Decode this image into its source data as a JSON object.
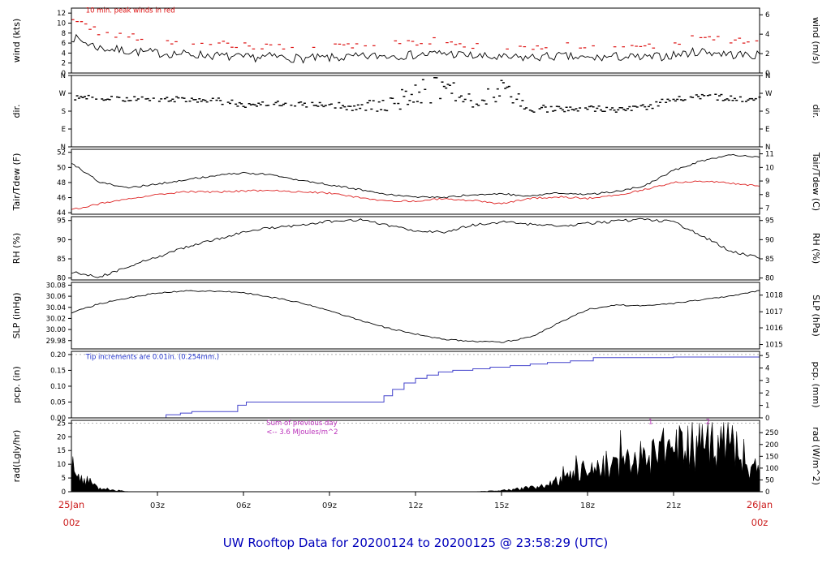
{
  "title": "UW Rooftop Data for 20200124  to  20200125 @ 23:58:29  (UTC)",
  "seed": 7,
  "colors": {
    "trace": "#000000",
    "peak_red": "#dd1111",
    "dew_red": "#dd2222",
    "precip_blue": "#4444cc",
    "annotation_blue": "#2233cc",
    "annotation_magenta": "#bb33bb",
    "axis_date_red": "#cc2020",
    "title_blue": "#0000bb",
    "tick_text": "#222222"
  },
  "x_axis": {
    "hours_span": 24,
    "tick_hours": [
      3,
      6,
      9,
      12,
      15,
      18,
      21
    ],
    "tick_labels": [
      "03z",
      "06z",
      "09z",
      "12z",
      "15z",
      "18z",
      "21z"
    ],
    "start_label_line1": "25Jan",
    "start_label_line2": "00z",
    "end_label_line1": "26Jan",
    "end_label_line2": "00z"
  },
  "chart_data": [
    {
      "id": "wind",
      "type": "line",
      "label_left": "wind (kts)",
      "label_right": "wind (m/s)",
      "ylim": [
        0,
        13
      ],
      "ticks_left": {
        "values": [
          0,
          2,
          4,
          6,
          8,
          10,
          12
        ],
        "labels": [
          "0",
          "2",
          "4",
          "6",
          "8",
          "10",
          "12"
        ]
      },
      "ticks_right": {
        "values": [
          0,
          3.889,
          7.778,
          11.667
        ],
        "labels": [
          "0",
          "2",
          "4",
          "6"
        ]
      },
      "annotations": [
        {
          "text": "10 min. peak winds in red",
          "x_hour": 0.5,
          "y_value": 12.1,
          "color": "#dd1111",
          "anchor": "start",
          "size": 8.5
        }
      ],
      "series": [
        {
          "name": "wind-average-kts",
          "style": "line",
          "color": "#000000",
          "noise": 0.9,
          "clamp": [
            0.3,
            12.4
          ],
          "values": [
            7.2,
            5.0,
            4.4,
            4.0,
            3.8,
            3.5,
            3.0,
            3.3,
            2.9,
            3.0,
            3.2,
            3.5,
            3.6,
            4.0,
            3.4,
            3.0,
            3.1,
            3.4,
            2.9,
            3.3,
            3.0,
            3.6,
            4.4,
            3.7,
            3.5
          ]
        },
        {
          "name": "wind-10min-peak-kts",
          "style": "dashes",
          "color": "#dd1111",
          "jitter": 0.7,
          "density": 0.62,
          "values": [
            10.8,
            8.2,
            7.4,
            6.4,
            6.0,
            5.8,
            5.4,
            5.6,
            5.0,
            5.0,
            5.6,
            6.0,
            6.2,
            6.6,
            5.6,
            5.0,
            5.4,
            5.6,
            5.0,
            5.4,
            5.2,
            6.0,
            7.6,
            6.6,
            6.0
          ]
        }
      ]
    },
    {
      "id": "dir",
      "type": "scatter",
      "label_left": "dir.",
      "label_right": "dir.",
      "ylim": [
        0,
        360
      ],
      "ticks_left": {
        "values": [
          0,
          90,
          180,
          270,
          360
        ],
        "labels": [
          "N",
          "E",
          "S",
          "W",
          "N"
        ]
      },
      "ticks_right": {
        "values": [
          0,
          90,
          180,
          270,
          360
        ],
        "labels": [
          "N",
          "E",
          "S",
          "W",
          "N"
        ]
      },
      "annotations": [],
      "series": [
        {
          "name": "wind-direction-deg",
          "style": "scatter",
          "color": "#000000",
          "values": [
            250,
            246,
            240,
            244,
            238,
            234,
            214,
            220,
            214,
            206,
            200,
            212,
            268,
            298,
            228,
            298,
            182,
            196,
            200,
            186,
            204,
            238,
            254,
            246,
            240
          ],
          "spread": [
            14,
            12,
            12,
            14,
            12,
            14,
            16,
            14,
            14,
            18,
            26,
            40,
            70,
            60,
            30,
            65,
            25,
            20,
            18,
            16,
            20,
            18,
            14,
            16,
            14
          ]
        }
      ]
    },
    {
      "id": "temperature",
      "type": "line",
      "label_left": "Tair/Tdew (F)",
      "label_right": "Tair/Tdew (C)",
      "ylim": [
        43.8,
        52.4
      ],
      "ticks_left": {
        "values": [
          44,
          46,
          48,
          50,
          52
        ],
        "labels": [
          "44",
          "46",
          "48",
          "50",
          "52"
        ]
      },
      "ticks_right": {
        "values": [
          44.6,
          46.4,
          48.2,
          50.0,
          51.8
        ],
        "labels": [
          "7",
          "8",
          "9",
          "10",
          "11"
        ]
      },
      "annotations": [],
      "series": [
        {
          "name": "tair-f",
          "style": "line",
          "color": "#000000",
          "noise": 0.12,
          "values": [
            50.6,
            48.0,
            47.3,
            47.8,
            48.4,
            48.9,
            49.3,
            49.0,
            48.3,
            47.7,
            47.1,
            46.4,
            46.1,
            46.0,
            46.4,
            46.5,
            46.2,
            46.6,
            46.4,
            46.8,
            47.6,
            49.6,
            50.9,
            51.7,
            51.4
          ]
        },
        {
          "name": "tdew-f",
          "style": "line",
          "color": "#dd2222",
          "noise": 0.12,
          "values": [
            44.4,
            45.2,
            45.9,
            46.4,
            46.8,
            46.7,
            46.9,
            46.9,
            46.8,
            46.6,
            46.0,
            45.6,
            45.5,
            45.9,
            45.6,
            45.2,
            45.9,
            46.1,
            45.9,
            46.3,
            47.1,
            48.0,
            48.2,
            47.9,
            47.5
          ]
        }
      ]
    },
    {
      "id": "rh",
      "type": "line",
      "label_left": "RH (%)",
      "label_right": "RH (%)",
      "ylim": [
        79.5,
        96
      ],
      "ticks_left": {
        "values": [
          80,
          85,
          90,
          95
        ],
        "labels": [
          "80",
          "85",
          "90",
          "95"
        ]
      },
      "ticks_right": {
        "values": [
          80,
          85,
          90,
          95
        ],
        "labels": [
          "80",
          "85",
          "90",
          "95"
        ]
      },
      "annotations": [],
      "series": [
        {
          "name": "relative-humidity-pct",
          "style": "line",
          "color": "#000000",
          "noise": 0.35,
          "clamp": [
            79.8,
            95.7
          ],
          "values": [
            81.5,
            80.3,
            83.0,
            85.5,
            88.0,
            90.0,
            92.0,
            93.2,
            93.6,
            94.8,
            95.2,
            93.8,
            92.3,
            92.0,
            93.8,
            94.6,
            94.0,
            93.6,
            94.2,
            94.8,
            95.3,
            94.6,
            91.0,
            87.0,
            85.3
          ]
        }
      ]
    },
    {
      "id": "slp",
      "type": "line",
      "label_left": "SLP (inHg)",
      "label_right": "SLP (hPa)",
      "ylim": [
        29.965,
        30.085
      ],
      "ticks_left": {
        "values": [
          29.98,
          30.0,
          30.02,
          30.04,
          30.06,
          30.08
        ],
        "labels": [
          "29.98",
          "30.00",
          "30.02",
          "30.04",
          "30.06",
          "30.08"
        ]
      },
      "ticks_right": {
        "values": [
          29.973,
          30.003,
          30.032,
          30.062
        ],
        "labels": [
          "1015",
          "1016",
          "1017",
          "1018"
        ]
      },
      "annotations": [],
      "series": [
        {
          "name": "sea-level-pressure-inhg",
          "style": "line",
          "color": "#000000",
          "noise": 0.0012,
          "values": [
            30.03,
            30.047,
            30.057,
            30.066,
            30.07,
            30.069,
            30.067,
            30.058,
            30.048,
            30.034,
            30.018,
            30.003,
            29.992,
            29.982,
            29.979,
            29.977,
            29.986,
            30.012,
            30.036,
            30.044,
            30.043,
            30.047,
            30.054,
            30.061,
            30.07
          ]
        }
      ]
    },
    {
      "id": "precip",
      "type": "step",
      "label_left": "pcp. (in)",
      "label_right": "pcp. (mm)",
      "ylim": [
        0,
        0.21
      ],
      "grid_dashed": [
        0.2
      ],
      "ticks_left": {
        "values": [
          0.0,
          0.05,
          0.1,
          0.15,
          0.2
        ],
        "labels": [
          "0.00",
          "0.05",
          "0.10",
          "0.15",
          "0.20"
        ]
      },
      "ticks_right": {
        "values": [
          0,
          0.0394,
          0.0787,
          0.1181,
          0.1575,
          0.1969
        ],
        "labels": [
          "0",
          "1",
          "2",
          "3",
          "4",
          "5"
        ]
      },
      "annotations": [
        {
          "text": "Tip increments are 0.01in. (0.254mm.)",
          "x_hour": 0.5,
          "y_value": 0.186,
          "color": "#2233cc",
          "anchor": "start",
          "size": 8.5
        }
      ],
      "series": [
        {
          "name": "precip-accum-in",
          "style": "step",
          "color": "#4444cc",
          "points": [
            [
              0,
              0
            ],
            [
              3.0,
              0
            ],
            [
              3.3,
              0.01
            ],
            [
              3.8,
              0.015
            ],
            [
              4.2,
              0.02
            ],
            [
              5.6,
              0.02
            ],
            [
              5.8,
              0.04
            ],
            [
              6.1,
              0.05
            ],
            [
              10.6,
              0.05
            ],
            [
              10.9,
              0.07
            ],
            [
              11.2,
              0.09
            ],
            [
              11.6,
              0.11
            ],
            [
              12.0,
              0.125
            ],
            [
              12.4,
              0.135
            ],
            [
              12.8,
              0.145
            ],
            [
              13.3,
              0.15
            ],
            [
              14.0,
              0.155
            ],
            [
              14.6,
              0.16
            ],
            [
              15.3,
              0.165
            ],
            [
              16.0,
              0.17
            ],
            [
              16.6,
              0.175
            ],
            [
              17.4,
              0.18
            ],
            [
              18.2,
              0.19
            ],
            [
              20.5,
              0.19
            ],
            [
              21.0,
              0.192
            ],
            [
              24,
              0.195
            ]
          ]
        }
      ]
    },
    {
      "id": "radiation",
      "type": "area",
      "label_left": "rad(Lgly/hr)",
      "label_right": "rad (W/m^2)",
      "ylim": [
        0,
        26
      ],
      "grid_dashed": [
        25
      ],
      "ticks_left": {
        "values": [
          0,
          5,
          10,
          15,
          20,
          25
        ],
        "labels": [
          "0",
          "5",
          "10",
          "15",
          "20",
          "25"
        ]
      },
      "ticks_right": {
        "values": [
          0,
          4.3,
          8.6,
          12.9,
          17.2,
          21.5
        ],
        "labels": [
          "0",
          "50",
          "100",
          "150",
          "200",
          "250"
        ]
      },
      "annotations": [
        {
          "text": "Sum of previous day",
          "x_hour": 6.8,
          "y_value": 24.2,
          "color": "#bb33bb",
          "anchor": "start",
          "size": 8.5
        },
        {
          "text": "<-- 3.6 MJoules/m^2",
          "x_hour": 6.8,
          "y_value": 21.0,
          "color": "#bb33bb",
          "anchor": "start",
          "size": 8.5
        },
        {
          "text": "1",
          "x_hour": 20.2,
          "y_value": 24.6,
          "color": "#bb33bb",
          "anchor": "middle",
          "size": 8.5
        },
        {
          "text": "2",
          "x_hour": 22.2,
          "y_value": 24.6,
          "color": "#bb33bb",
          "anchor": "middle",
          "size": 8.5
        }
      ],
      "series": [
        {
          "name": "solar-radiation-lyhr",
          "style": "area",
          "color": "#000000",
          "clamp": [
            0,
            25.3
          ],
          "values": [
            7,
            1.5,
            0,
            0,
            0,
            0,
            0,
            0,
            0,
            0,
            0,
            0,
            0,
            0,
            0,
            0.4,
            1.5,
            4,
            8,
            10,
            13,
            16,
            17,
            19,
            6
          ]
        }
      ]
    }
  ]
}
